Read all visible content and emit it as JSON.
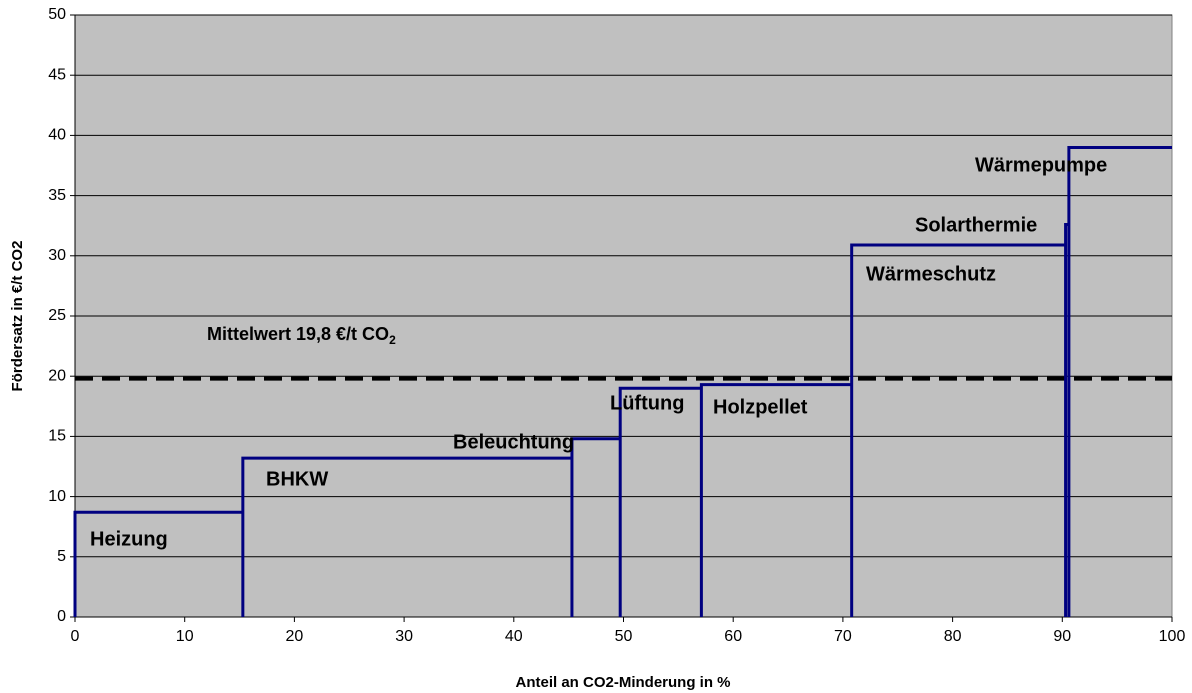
{
  "chart_data": {
    "type": "step",
    "x_label": "Anteil an CO2-Minderung in %",
    "y_label": "Fördersatz in €/t CO2",
    "categories": [
      "Heizung",
      "BHKW",
      "Beleuchtung",
      "Lüftung",
      "Holzpellet",
      "Wärmeschutz",
      "Solarthermie",
      "Wärmepumpe"
    ],
    "bins": [
      0,
      15.3,
      45.3,
      49.7,
      57.1,
      70.8,
      90.3,
      90.6,
      100
    ],
    "values": [
      8.7,
      13.2,
      14.8,
      19,
      19.3,
      30.9,
      32.6,
      39
    ],
    "color": "#000080",
    "mean": {
      "value": 19.8,
      "label": "Mittelwert 19,8 €/t CO",
      "subscript": "2"
    },
    "xlim": [
      0,
      100
    ],
    "xticks": [
      0,
      10,
      20,
      30,
      40,
      50,
      60,
      70,
      80,
      90,
      100
    ],
    "ylim": [
      0,
      50
    ],
    "yticks": [
      0,
      5,
      10,
      15,
      20,
      25,
      30,
      35,
      40,
      45,
      50
    ],
    "grid": true
  }
}
